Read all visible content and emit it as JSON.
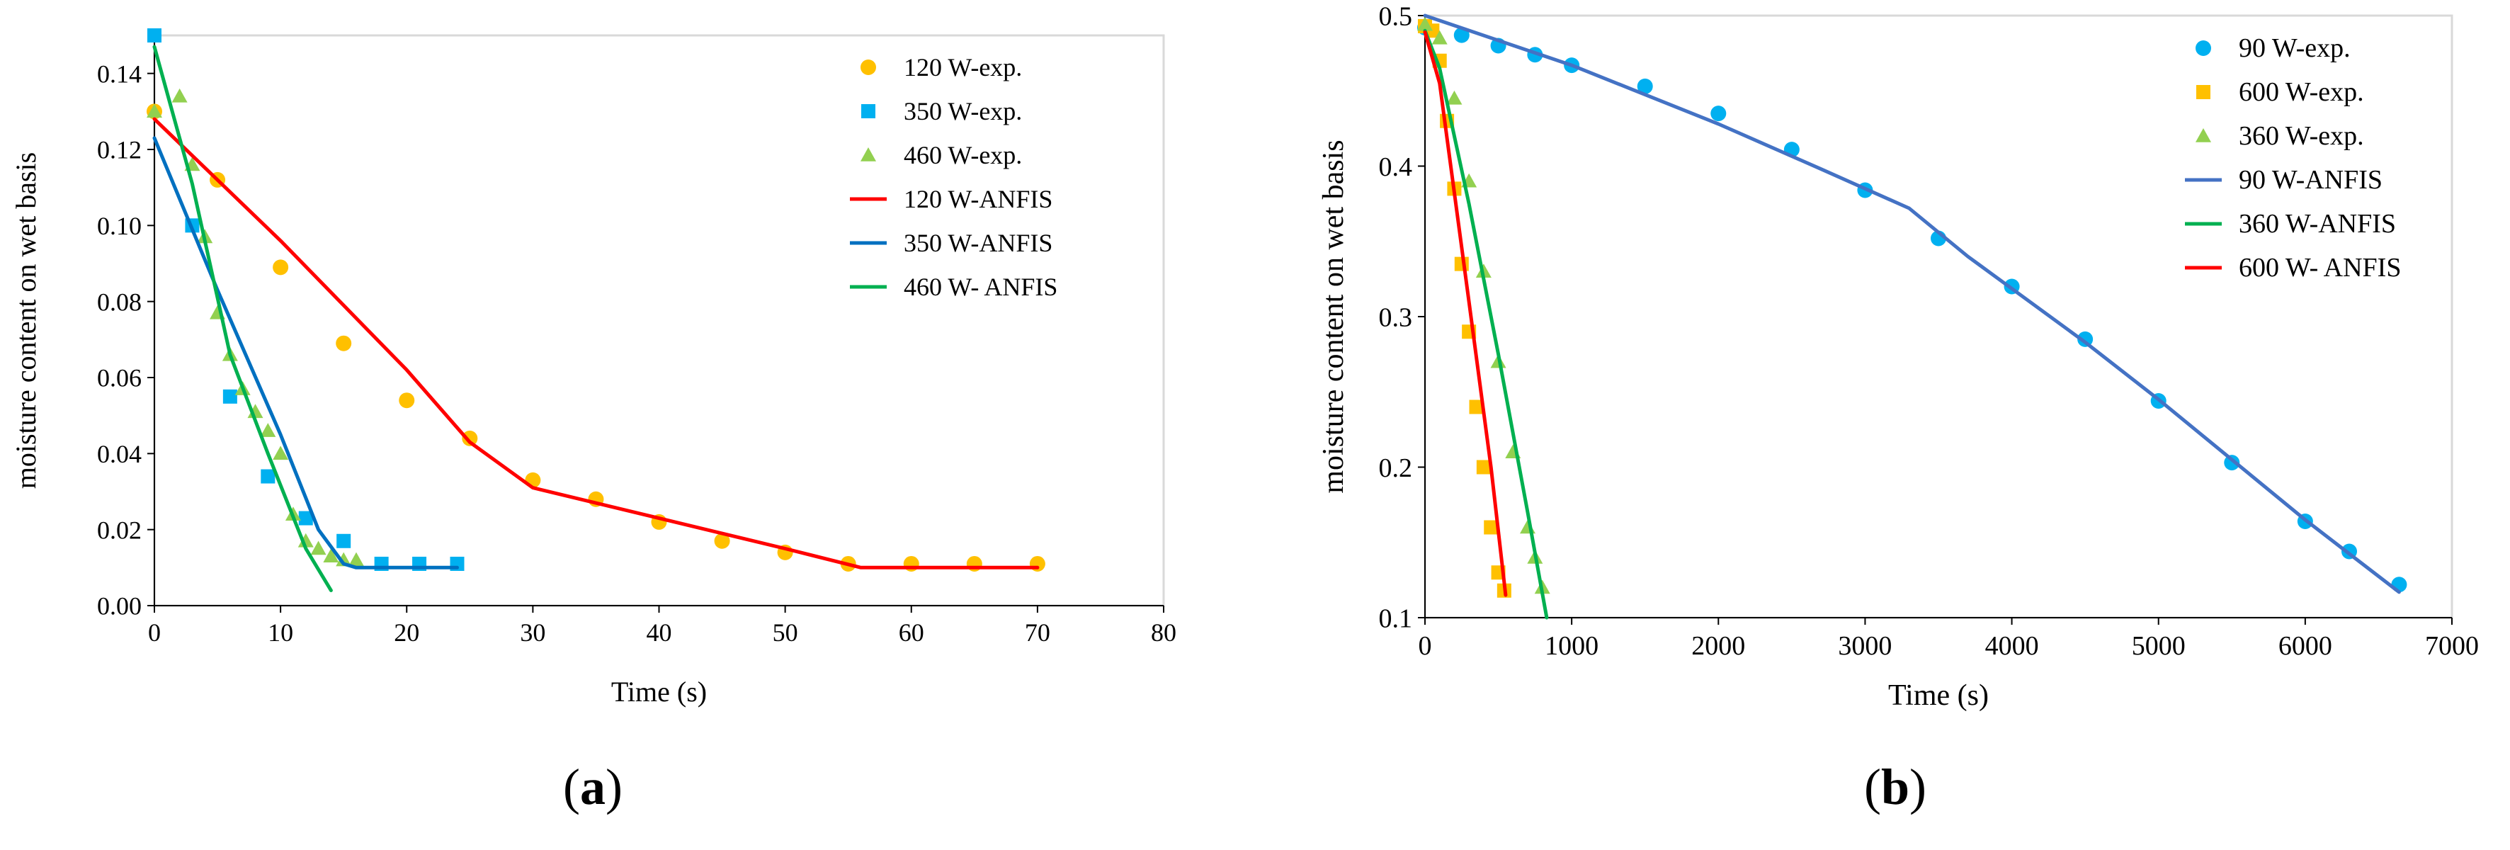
{
  "chart_data": [
    {
      "panel_label": "a",
      "type": "scatter",
      "title": "",
      "xlabel": "Time (s)",
      "ylabel": "moisture content on wet basis",
      "xlim": [
        0,
        80
      ],
      "ylim": [
        0,
        0.15
      ],
      "xticks": [
        0,
        10,
        20,
        30,
        40,
        50,
        60,
        70,
        80
      ],
      "yticks": [
        0.0,
        0.02,
        0.04,
        0.06,
        0.08,
        0.1,
        0.12,
        0.14
      ],
      "ytick_decimals": 2,
      "grid": false,
      "legend_position": "top-right",
      "series": [
        {
          "name": "120 W-exp.",
          "kind": "scatter",
          "marker": "circle",
          "color": "#FFC000",
          "x": [
            0,
            5,
            10,
            15,
            20,
            25,
            30,
            35,
            40,
            45,
            50,
            55,
            60,
            65,
            70
          ],
          "y": [
            0.13,
            0.112,
            0.089,
            0.069,
            0.054,
            0.044,
            0.033,
            0.028,
            0.022,
            0.017,
            0.014,
            0.011,
            0.011,
            0.011,
            0.011
          ]
        },
        {
          "name": "350 W-exp.",
          "kind": "scatter",
          "marker": "square",
          "color": "#00B0F0",
          "x": [
            0,
            3,
            6,
            9,
            12,
            15,
            18,
            21,
            24
          ],
          "y": [
            0.15,
            0.1,
            0.055,
            0.034,
            0.023,
            0.017,
            0.011,
            0.011,
            0.011
          ]
        },
        {
          "name": "460 W-exp.",
          "kind": "scatter",
          "marker": "triangle",
          "color": "#92D050",
          "x": [
            0,
            2,
            3,
            4,
            5,
            6,
            7,
            8,
            9,
            10,
            11,
            12,
            13,
            14,
            15,
            16
          ],
          "y": [
            0.13,
            0.134,
            0.116,
            0.097,
            0.077,
            0.066,
            0.057,
            0.051,
            0.046,
            0.04,
            0.024,
            0.017,
            0.015,
            0.013,
            0.012,
            0.012
          ]
        },
        {
          "name": "120 W-ANFIS",
          "kind": "line",
          "color": "#FF0000",
          "x": [
            0,
            10,
            20,
            25,
            30,
            40,
            50,
            56,
            60,
            70
          ],
          "y": [
            0.128,
            0.096,
            0.062,
            0.043,
            0.031,
            0.023,
            0.015,
            0.01,
            0.01,
            0.01
          ]
        },
        {
          "name": "350 W-ANFIS",
          "kind": "line",
          "color": "#0070C0",
          "x": [
            0,
            5,
            10,
            13,
            15,
            16,
            24
          ],
          "y": [
            0.123,
            0.083,
            0.045,
            0.02,
            0.011,
            0.01,
            0.01
          ]
        },
        {
          "name": "460 W- ANFIS",
          "kind": "line",
          "color": "#00B050",
          "x": [
            0,
            3,
            6,
            9,
            12,
            14
          ],
          "y": [
            0.147,
            0.111,
            0.066,
            0.04,
            0.015,
            0.004
          ]
        }
      ]
    },
    {
      "panel_label": "b",
      "type": "scatter",
      "title": "",
      "xlabel": "Time (s)",
      "ylabel": "moisture content on wet basis",
      "xlim": [
        0,
        7000
      ],
      "ylim": [
        0.1,
        0.5
      ],
      "xticks": [
        0,
        1000,
        2000,
        3000,
        4000,
        5000,
        6000,
        7000
      ],
      "yticks": [
        0.1,
        0.2,
        0.3,
        0.4,
        0.5
      ],
      "ytick_decimals": 1,
      "grid": false,
      "legend_position": "top-right",
      "series": [
        {
          "name": "90 W-exp.",
          "kind": "scatter",
          "marker": "circle",
          "color": "#00B0F0",
          "x": [
            0,
            250,
            500,
            750,
            1000,
            1500,
            2000,
            2500,
            3000,
            3500,
            4000,
            4500,
            5000,
            5500,
            6000,
            6300,
            6640
          ],
          "y": [
            0.492,
            0.487,
            0.48,
            0.474,
            0.467,
            0.453,
            0.435,
            0.411,
            0.384,
            0.352,
            0.32,
            0.285,
            0.244,
            0.203,
            0.164,
            0.144,
            0.122
          ]
        },
        {
          "name": "600 W-exp.",
          "kind": "scatter",
          "marker": "square",
          "color": "#FFC000",
          "x": [
            0,
            50,
            100,
            150,
            200,
            250,
            300,
            350,
            400,
            450,
            500,
            540
          ],
          "y": [
            0.493,
            0.49,
            0.47,
            0.43,
            0.385,
            0.335,
            0.29,
            0.24,
            0.2,
            0.16,
            0.13,
            0.118
          ]
        },
        {
          "name": "360 W-exp.",
          "kind": "scatter",
          "marker": "triangle",
          "color": "#92D050",
          "x": [
            0,
            100,
            200,
            300,
            400,
            500,
            600,
            700,
            750,
            800
          ],
          "y": [
            0.494,
            0.485,
            0.445,
            0.39,
            0.33,
            0.27,
            0.21,
            0.16,
            0.14,
            0.12
          ]
        },
        {
          "name": "90 W-ANFIS",
          "kind": "line",
          "color": "#4472C4",
          "x": [
            0,
            1000,
            2000,
            2700,
            3300,
            3700,
            4500,
            5000,
            5500,
            6000,
            6640
          ],
          "y": [
            0.5,
            0.467,
            0.428,
            0.398,
            0.372,
            0.34,
            0.283,
            0.245,
            0.205,
            0.165,
            0.117
          ]
        },
        {
          "name": "360 W-ANFIS",
          "kind": "line",
          "color": "#00B050",
          "x": [
            0,
            100,
            300,
            500,
            700,
            830
          ],
          "y": [
            0.49,
            0.465,
            0.375,
            0.275,
            0.17,
            0.1
          ]
        },
        {
          "name": "600 W- ANFIS",
          "kind": "line",
          "color": "#FF0000",
          "x": [
            0,
            100,
            300,
            450,
            550
          ],
          "y": [
            0.489,
            0.455,
            0.31,
            0.2,
            0.115
          ]
        }
      ]
    }
  ],
  "captions": [
    "a",
    "b"
  ]
}
